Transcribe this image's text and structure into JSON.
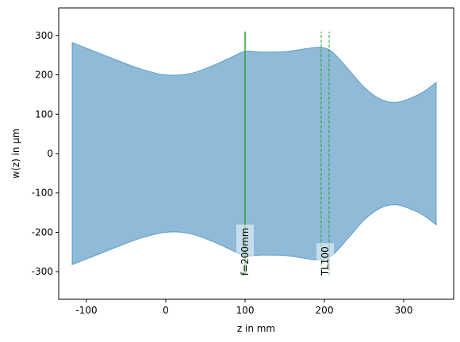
{
  "chart_data": {
    "type": "area",
    "title": "",
    "xlabel": "z in mm",
    "ylabel": "w(z) in µm",
    "xlim": [
      -135,
      363
    ],
    "ylim": [
      -370,
      370
    ],
    "x_ticks": [
      -100,
      0,
      100,
      200,
      300
    ],
    "y_ticks": [
      -300,
      -200,
      -100,
      0,
      100,
      200,
      300
    ],
    "grid": false,
    "fill_color": "#1f77b4",
    "fill_opacity": 0.5,
    "element_color": "#2ca02c",
    "series": [
      {
        "upper": {
          "x": [
            -118,
            -90,
            -60,
            -30,
            0,
            30,
            60,
            85,
            100,
            120,
            150,
            175,
            195,
            210,
            230,
            250,
            270,
            290,
            310,
            325,
            341
          ],
          "y": [
            282,
            260,
            236,
            214,
            200,
            203,
            224,
            247,
            260,
            258,
            259,
            266,
            270,
            258,
            215,
            169,
            139,
            130,
            142,
            157,
            181
          ]
        },
        "lower": {
          "x": [
            -118,
            -90,
            -60,
            -30,
            0,
            30,
            60,
            85,
            100,
            120,
            150,
            175,
            195,
            210,
            230,
            250,
            270,
            290,
            310,
            325,
            341
          ],
          "y": [
            -282,
            -260,
            -236,
            -214,
            -200,
            -203,
            -224,
            -247,
            -260,
            -258,
            -259,
            -266,
            -270,
            -258,
            -215,
            -169,
            -139,
            -130,
            -142,
            -157,
            -181
          ]
        }
      }
    ],
    "elements": [
      {
        "label": "f=200mm",
        "z": 100,
        "style": "solid"
      },
      {
        "label": "TL100",
        "z": 201,
        "style": "dashed",
        "offsets": [
          -5,
          5
        ]
      }
    ],
    "element_line_range": [
      -310,
      310
    ],
    "element_label_y": -310
  }
}
